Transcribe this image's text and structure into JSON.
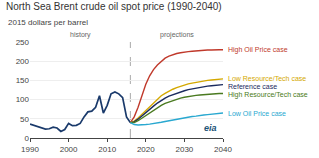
{
  "chart_data": {
    "type": "line",
    "title": "North Sea Brent crude oil spot price (1990-2040)",
    "subtitle": "2015 dollars per barrel",
    "annotations": [
      "history",
      "projections",
      "eia"
    ],
    "history_end": 2016,
    "xlim": [
      1990,
      2040
    ],
    "xticks": [
      1990,
      2000,
      2010,
      2020,
      2030,
      2040
    ],
    "ylim": [
      0,
      250
    ],
    "yticks": [
      0,
      50,
      100,
      150,
      200,
      250
    ],
    "grid": true,
    "series": [
      {
        "color": "#1a3a6b",
        "x": [
          1990,
          1991,
          1992,
          1993,
          1994,
          1995,
          1996,
          1997,
          1998,
          1999,
          2000,
          2001,
          2002,
          2003,
          2004,
          2005,
          2006,
          2007,
          2008,
          2009,
          2010,
          2011,
          2012,
          2013,
          2014,
          2015,
          2016
        ],
        "values": [
          36,
          33,
          30,
          26,
          23,
          24,
          28,
          26,
          17,
          22,
          38,
          32,
          33,
          38,
          55,
          68,
          70,
          80,
          110,
          65,
          85,
          115,
          120,
          115,
          105,
          55,
          40
        ]
      },
      {
        "name": "High Oil Price case",
        "color": "#c0392b",
        "x": [
          2016,
          2017,
          2018,
          2019,
          2020,
          2021,
          2022,
          2023,
          2024,
          2025,
          2026,
          2027,
          2028,
          2029,
          2030,
          2031,
          2032,
          2033,
          2034,
          2035,
          2036,
          2037,
          2038,
          2039,
          2040
        ],
        "values": [
          40,
          55,
          80,
          110,
          140,
          162,
          178,
          190,
          200,
          208,
          213,
          217,
          220,
          222,
          224,
          225,
          226,
          227,
          228,
          228,
          229,
          229,
          230,
          230,
          230
        ]
      },
      {
        "name": "Low Resource/Tech case",
        "color": "#d4a800",
        "x": [
          2016,
          2017,
          2018,
          2019,
          2020,
          2021,
          2022,
          2023,
          2024,
          2025,
          2026,
          2027,
          2028,
          2029,
          2030,
          2031,
          2032,
          2033,
          2034,
          2035,
          2036,
          2037,
          2038,
          2039,
          2040
        ],
        "values": [
          40,
          44,
          52,
          62,
          72,
          82,
          92,
          102,
          110,
          116,
          122,
          127,
          131,
          135,
          138,
          141,
          143,
          145,
          147,
          149,
          150,
          151,
          152,
          153,
          154
        ]
      },
      {
        "name": "Reference case",
        "color": "#1a2a5e",
        "x": [
          2016,
          2017,
          2018,
          2019,
          2020,
          2021,
          2022,
          2023,
          2024,
          2025,
          2026,
          2027,
          2028,
          2029,
          2030,
          2031,
          2032,
          2033,
          2034,
          2035,
          2036,
          2037,
          2038,
          2039,
          2040
        ],
        "values": [
          40,
          42,
          49,
          58,
          67,
          75,
          83,
          91,
          98,
          104,
          109,
          113,
          117,
          120,
          123,
          126,
          128,
          130,
          132,
          133,
          135,
          136,
          137,
          138,
          139
        ]
      },
      {
        "name": "High Resource/Tech case",
        "color": "#4a7a20",
        "x": [
          2016,
          2017,
          2018,
          2019,
          2020,
          2021,
          2022,
          2023,
          2024,
          2025,
          2026,
          2027,
          2028,
          2029,
          2030,
          2031,
          2032,
          2033,
          2034,
          2035,
          2036,
          2037,
          2038,
          2039,
          2040
        ],
        "values": [
          40,
          40,
          45,
          52,
          59,
          66,
          73,
          79,
          85,
          90,
          94,
          98,
          101,
          104,
          106,
          108,
          110,
          111,
          112,
          113,
          114,
          115,
          115,
          116,
          116
        ]
      },
      {
        "name": "Low Oil Price case",
        "color": "#29a8d0",
        "x": [
          2016,
          2017,
          2018,
          2019,
          2020,
          2021,
          2022,
          2023,
          2024,
          2025,
          2026,
          2027,
          2028,
          2029,
          2030,
          2031,
          2032,
          2033,
          2034,
          2035,
          2036,
          2037,
          2038,
          2039,
          2040
        ],
        "values": [
          40,
          35,
          34,
          34,
          35,
          36,
          37,
          39,
          41,
          43,
          45,
          47,
          49,
          51,
          53,
          55,
          56,
          57,
          59,
          60,
          61,
          62,
          63,
          64,
          65
        ]
      }
    ]
  }
}
